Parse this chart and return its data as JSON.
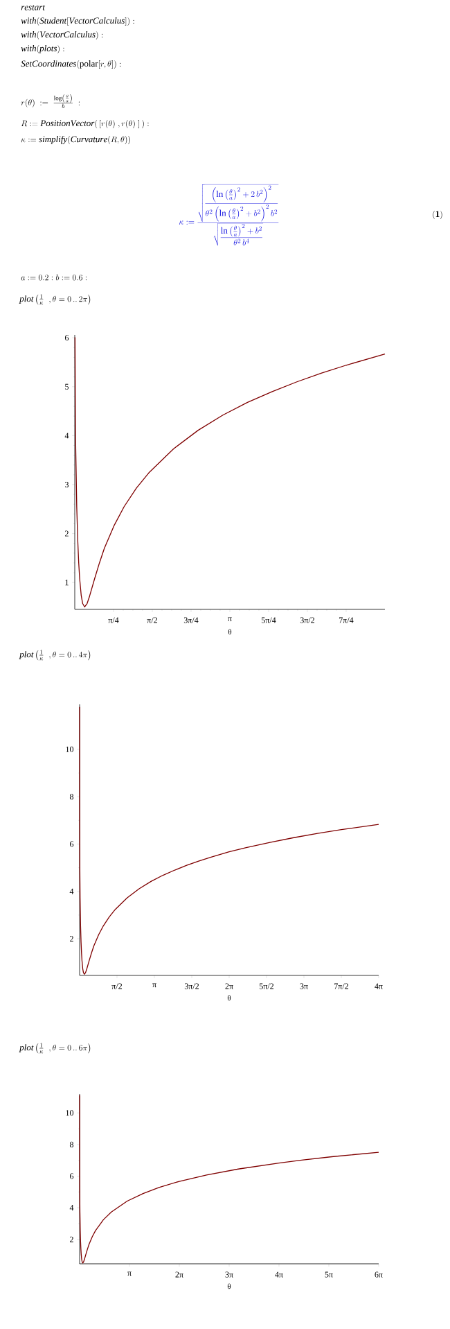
{
  "chart_data": [
    {
      "type": "line",
      "title": "\\mathit{plot}\\left(\\frac{1}{\\kappa}\\;\\;, \\theta = 0\\,..\\,2\\pi\\right)",
      "xlabel": "θ",
      "color": "#7f0000",
      "x": [
        0.0052,
        0.01,
        0.02,
        0.04,
        0.06,
        0.08,
        0.1,
        0.13,
        0.16,
        0.2,
        0.25,
        0.3,
        0.4,
        0.5,
        0.6,
        0.8,
        1.0,
        1.25,
        1.5,
        2.0,
        2.5,
        3.0,
        3.5,
        4.0,
        4.5,
        5.0,
        5.5,
        6.2832
      ],
      "values": [
        6.01,
        4.9,
        3.73,
        2.55,
        1.87,
        1.4,
        1.07,
        0.74,
        0.57,
        0.5,
        0.57,
        0.72,
        1.07,
        1.4,
        1.7,
        2.17,
        2.55,
        2.93,
        3.24,
        3.73,
        4.11,
        4.42,
        4.68,
        4.9,
        5.1,
        5.28,
        5.44,
        5.67
      ],
      "xlim": [
        0,
        6.2832
      ],
      "ylim": [
        0.45,
        6.06
      ],
      "xticks": [
        {
          "value": 0.7854,
          "label": "π/4"
        },
        {
          "value": 1.5708,
          "label": "π/2"
        },
        {
          "value": 2.3562,
          "label": "3π/4"
        },
        {
          "value": 3.1416,
          "label": "π"
        },
        {
          "value": 3.927,
          "label": "5π/4"
        },
        {
          "value": 4.7124,
          "label": "3π/2"
        },
        {
          "value": 5.4978,
          "label": "7π/4"
        }
      ],
      "yticks": [
        1,
        2,
        3,
        4,
        5,
        6
      ],
      "annotations": [
        "\\mathit{restart}",
        "\\mathit{with}(\\mathit{Student}[\\mathit{VectorCalculus}]) :",
        "\\mathit{with}(\\mathit{VectorCalculus}) :",
        "\\mathit{with}(\\mathit{plots}) :",
        "\\mathit{SetCoordinates}(\\mathrm{polar}[r,\\theta]) :",
        "r(\\theta) \\;:=\\; \\frac{\\log\\left(\\frac{\\theta}{a}\\right)}{b} \\;:",
        "R := \\mathit{PositionVector}(\\,[r(\\theta)\\;, r(\\theta)\\;]\\,) :",
        "\\kappa := \\mathit{simplify}(\\mathit{Curvature}(R, \\theta))",
        "\\kappa := \\frac{\\sqrt{\\dfrac{\\left(\\ln\\left(\\frac{\\theta}{a}\\right)^2+2\\,b^2\\right)^2}{\\theta^2\\left(\\ln\\left(\\frac{\\theta}{a}\\right)^2+b^2\\right)^2 b^2}}}{\\sqrt{\\dfrac{\\ln\\left(\\frac{\\theta}{a}\\right)^2+b^2}{\\theta^2\\, b^4}}}",
        "\\mathbf{(1)}",
        "a := 0.2 : b := 0.6 :"
      ]
    },
    {
      "type": "line",
      "title": "\\mathit{plot}\\left(\\frac{1}{\\kappa}\\;\\;, \\theta = 0\\,..\\,4\\pi\\right)",
      "xlabel": "θ",
      "color": "#7f0000",
      "x": [
        0.000165,
        0.001,
        0.002,
        0.0052,
        0.01,
        0.02,
        0.04,
        0.06,
        0.08,
        0.1,
        0.13,
        0.16,
        0.2,
        0.25,
        0.3,
        0.4,
        0.5,
        0.6,
        0.8,
        1.0,
        1.25,
        1.5,
        2.0,
        2.5,
        3.0,
        3.5,
        4.0,
        4.5,
        5.0,
        5.5,
        6.2832,
        7.0,
        8.0,
        9.0,
        10.0,
        11.0,
        12.566
      ],
      "values": [
        11.79,
        8.78,
        7.61,
        6.01,
        4.9,
        3.73,
        2.55,
        1.87,
        1.4,
        1.07,
        0.74,
        0.57,
        0.5,
        0.57,
        0.72,
        1.07,
        1.4,
        1.7,
        2.17,
        2.55,
        2.93,
        3.24,
        3.73,
        4.11,
        4.42,
        4.68,
        4.9,
        5.1,
        5.28,
        5.44,
        5.67,
        5.85,
        6.07,
        6.27,
        6.45,
        6.61,
        6.83
      ],
      "xlim": [
        0,
        12.566
      ],
      "ylim": [
        0.45,
        11.9
      ],
      "xticks": [
        {
          "value": 1.5708,
          "label": "π/2"
        },
        {
          "value": 3.1416,
          "label": "π"
        },
        {
          "value": 4.7124,
          "label": "3π/2"
        },
        {
          "value": 6.2832,
          "label": "2π"
        },
        {
          "value": 7.854,
          "label": "5π/2"
        },
        {
          "value": 9.4248,
          "label": "3π"
        },
        {
          "value": 10.9956,
          "label": "7π/2"
        },
        {
          "value": 12.566,
          "label": "4π"
        }
      ],
      "yticks": [
        2,
        4,
        6,
        8,
        10
      ]
    },
    {
      "type": "line",
      "title": "\\mathit{plot}\\left(\\frac{1}{\\kappa}\\;\\;, \\theta = 0\\,..\\,6\\pi\\right)",
      "xlabel": "θ",
      "color": "#7f0000",
      "x": [
        0.000246,
        0.001,
        0.002,
        0.0052,
        0.01,
        0.02,
        0.04,
        0.06,
        0.08,
        0.1,
        0.13,
        0.16,
        0.2,
        0.25,
        0.3,
        0.4,
        0.5,
        0.6,
        0.8,
        1.0,
        1.5,
        2.0,
        3.0,
        4.0,
        5.0,
        6.2832,
        8.0,
        10.0,
        12.566,
        14.0,
        16.0,
        18.85
      ],
      "values": [
        11.12,
        8.78,
        7.61,
        6.01,
        4.9,
        3.73,
        2.55,
        1.87,
        1.4,
        1.07,
        0.74,
        0.57,
        0.5,
        0.57,
        0.72,
        1.07,
        1.4,
        1.7,
        2.17,
        2.55,
        3.24,
        3.73,
        4.42,
        4.9,
        5.28,
        5.67,
        6.07,
        6.45,
        6.83,
        7.01,
        7.24,
        7.51
      ],
      "xlim": [
        0,
        18.85
      ],
      "ylim": [
        0.45,
        11.2
      ],
      "xticks": [
        {
          "value": 3.1416,
          "label": "π"
        },
        {
          "value": 6.2832,
          "label": "2π"
        },
        {
          "value": 9.4248,
          "label": "3π"
        },
        {
          "value": 12.566,
          "label": "4π"
        },
        {
          "value": 15.708,
          "label": "5π"
        },
        {
          "value": 18.85,
          "label": "6π"
        }
      ],
      "yticks": [
        2,
        4,
        6,
        8,
        10
      ]
    }
  ]
}
